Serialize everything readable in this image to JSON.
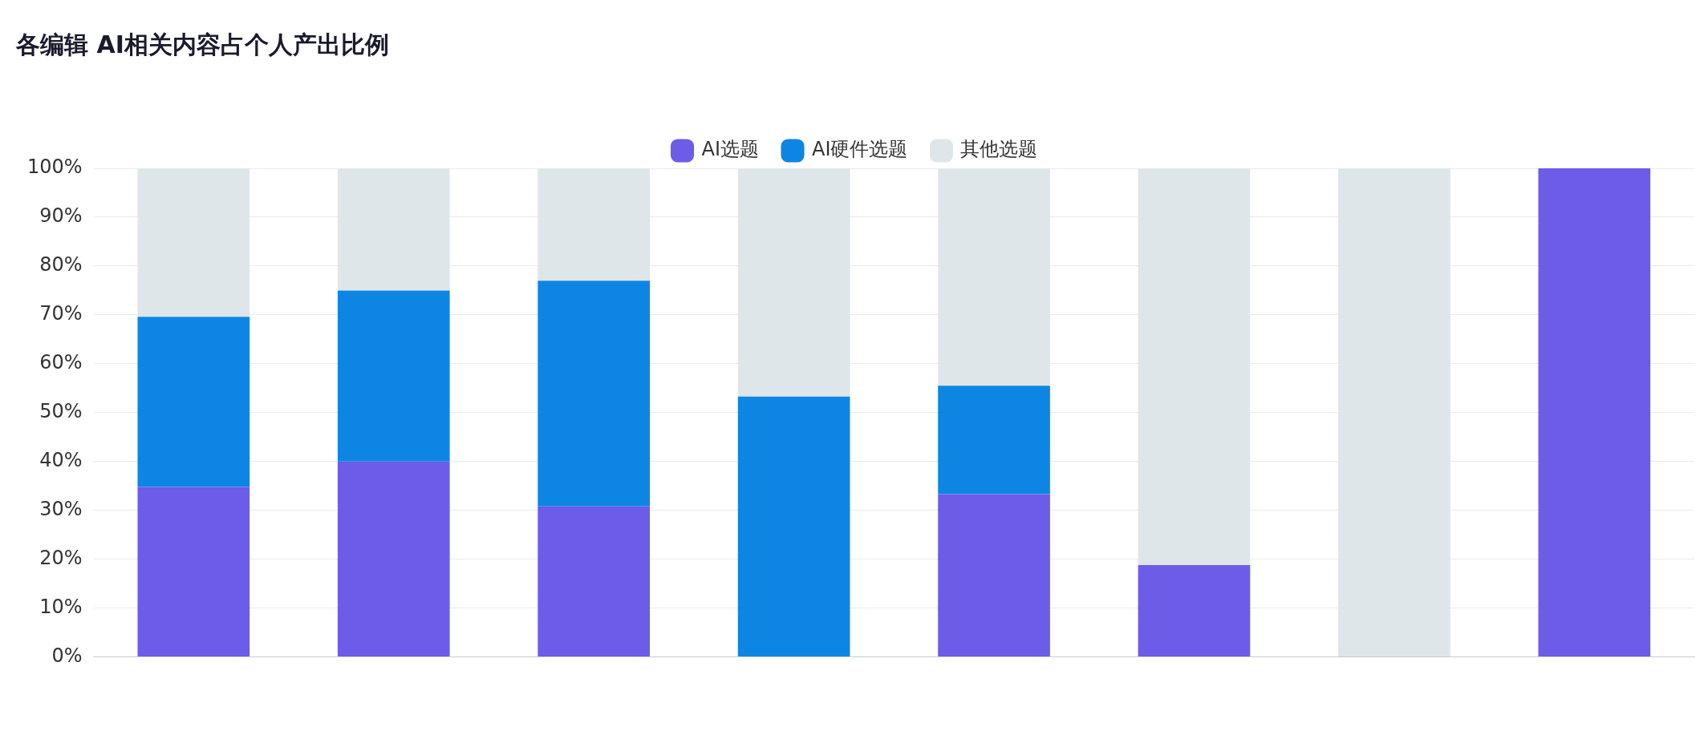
{
  "chart_data": {
    "type": "bar",
    "title": "各编辑 AI相关内容占个人产出比例",
    "categories": [
      null,
      null,
      null,
      null,
      null,
      null,
      null,
      null
    ],
    "stacked": true,
    "series": [
      {
        "name": "AI选题",
        "color": "#6c5ce7",
        "values": [
          34.8,
          40,
          30.8,
          0,
          33.3,
          18.8,
          0,
          100
        ]
      },
      {
        "name": "AI硬件选题",
        "color": "#0d86e3",
        "values": [
          34.8,
          35,
          46.2,
          53.3,
          22.2,
          0,
          0,
          0
        ]
      },
      {
        "name": "其他选题",
        "color": "#dfe6e9",
        "values": [
          30.4,
          25,
          23.1,
          46.7,
          44.4,
          81.2,
          100,
          0
        ]
      }
    ],
    "ylim": [
      0,
      100
    ],
    "yticks": [
      {
        "value": 0,
        "label": "0%"
      },
      {
        "value": 10,
        "label": "10%"
      },
      {
        "value": 20,
        "label": "20%"
      },
      {
        "value": 30,
        "label": "30%"
      },
      {
        "value": 40,
        "label": "40%"
      },
      {
        "value": 50,
        "label": "50%"
      },
      {
        "value": 60,
        "label": "60%"
      },
      {
        "value": 70,
        "label": "70%"
      },
      {
        "value": 80,
        "label": "80%"
      },
      {
        "value": 90,
        "label": "90%"
      },
      {
        "value": 100,
        "label": "100%"
      }
    ],
    "grid": "y",
    "legend": "top"
  }
}
